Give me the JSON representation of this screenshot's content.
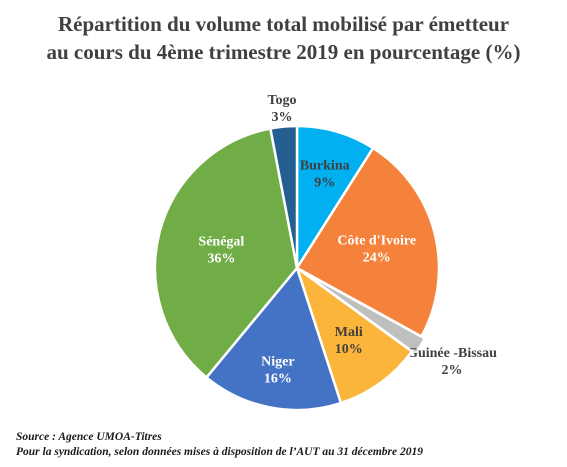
{
  "title": {
    "line1": "Répartition du volume total mobilisé par émetteur",
    "line2": "au cours du 4ème trimestre 2019 en pourcentage (%)"
  },
  "chart_data": {
    "type": "pie",
    "slices": [
      {
        "name": "Burkina",
        "value": 9,
        "label": "9%",
        "color": "#00B0F0",
        "text_color": "#404040"
      },
      {
        "name": "Côte d'Ivoire",
        "value": 24,
        "label": "24%",
        "color": "#F4823A",
        "text_color": "#ffffff"
      },
      {
        "name": "Guinée  -Bissau",
        "value": 2,
        "label": "2%",
        "color": "#BFBFBF",
        "text_color": "#404040"
      },
      {
        "name": "Mali",
        "value": 10,
        "label": "10%",
        "color": "#FBB53A",
        "text_color": "#404040"
      },
      {
        "name": "Niger",
        "value": 16,
        "label": "16%",
        "color": "#4472C4",
        "text_color": "#ffffff"
      },
      {
        "name": "Sénégal",
        "value": 36,
        "label": "36%",
        "color": "#70AD47",
        "text_color": "#ffffff"
      },
      {
        "name": "Togo",
        "value": 3,
        "label": "3%",
        "color": "#255E91",
        "text_color": "#404040"
      }
    ]
  },
  "source": {
    "line1": "Source : Agence UMOA-Titres",
    "line2": "Pour la syndication, selon données mises à disposition de l’AUT au 31 décembre 2019"
  }
}
